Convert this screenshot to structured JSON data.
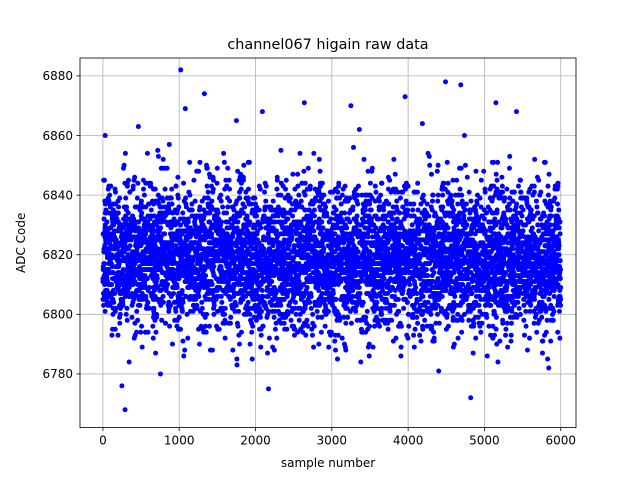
{
  "chart_data": {
    "type": "scatter",
    "title": "channel067 higain raw data",
    "xlabel": "sample number",
    "ylabel": "ADC Code",
    "xlim": [
      -300,
      6200
    ],
    "ylim": [
      6762,
      6886
    ],
    "xticks": [
      0,
      1000,
      2000,
      3000,
      4000,
      5000,
      6000
    ],
    "yticks": [
      6780,
      6800,
      6820,
      6840,
      6860,
      6880
    ],
    "grid": true,
    "marker_color": "#0000ff",
    "n_points": 6000,
    "distribution": {
      "center": 6819,
      "spread_sd": 12,
      "central_band": [
        6800,
        6840
      ],
      "typical_range": [
        6775,
        6865
      ]
    },
    "outliers": [
      {
        "x": 30,
        "y": 6860
      },
      {
        "x": 290,
        "y": 6768
      },
      {
        "x": 1020,
        "y": 6882
      },
      {
        "x": 1080,
        "y": 6869
      },
      {
        "x": 1330,
        "y": 6874
      },
      {
        "x": 1750,
        "y": 6865
      },
      {
        "x": 2090,
        "y": 6868
      },
      {
        "x": 2170,
        "y": 6775
      },
      {
        "x": 2640,
        "y": 6871
      },
      {
        "x": 3250,
        "y": 6870
      },
      {
        "x": 3960,
        "y": 6873
      },
      {
        "x": 4490,
        "y": 6878
      },
      {
        "x": 4690,
        "y": 6877
      },
      {
        "x": 4820,
        "y": 6772
      },
      {
        "x": 5150,
        "y": 6871
      },
      {
        "x": 5420,
        "y": 6868
      }
    ]
  }
}
